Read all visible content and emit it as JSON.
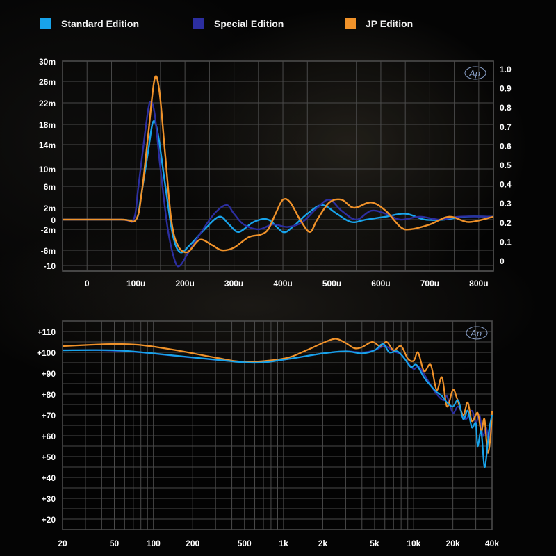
{
  "legend": [
    {
      "label": "Standard Edition",
      "color": "#18a3ea"
    },
    {
      "label": "Special Edition",
      "color": "#2c2ea0"
    },
    {
      "label": "JP Edition",
      "color": "#f0922a"
    }
  ],
  "chart_data": [
    {
      "type": "line",
      "xlim": [
        -50,
        830
      ],
      "x_ticks": [
        0,
        100,
        200,
        300,
        400,
        500,
        600,
        700,
        800
      ],
      "x_tick_labels": [
        "0",
        "100u",
        "200u",
        "300u",
        "400u",
        "500u",
        "600u",
        "700u",
        "800u"
      ],
      "y_left_ticks": [
        30,
        26,
        22,
        18,
        14,
        10,
        6,
        2,
        0,
        -2,
        -6,
        -10
      ],
      "y_left_tick_labels": [
        "30m",
        "26m",
        "22m",
        "18m",
        "14m",
        "10m",
        "6m",
        "2m",
        "0",
        "-2m",
        "-6m",
        "-10"
      ],
      "y_right_ticks": [
        1.0,
        0.9,
        0.8,
        0.7,
        0.6,
        0.5,
        0.4,
        0.3,
        0.2,
        0.1,
        0
      ],
      "y_right_tick_labels": [
        "1.0",
        "0.9",
        "0.8",
        "0.7",
        "0.6",
        "0.5",
        "0.4",
        "0.3",
        "0.2",
        "0.1",
        "0"
      ],
      "logo": "Ap",
      "grid": true,
      "series": [
        {
          "color": "#18a3ea",
          "points": [
            [
              -50,
              0
            ],
            [
              70,
              0
            ],
            [
              100,
              0
            ],
            [
              110,
              4
            ],
            [
              125,
              13
            ],
            [
              135,
              18.5
            ],
            [
              145,
              16
            ],
            [
              160,
              6
            ],
            [
              175,
              -3
            ],
            [
              190,
              -6.5
            ],
            [
              210,
              -5
            ],
            [
              240,
              -2
            ],
            [
              270,
              0.5
            ],
            [
              290,
              -1
            ],
            [
              310,
              -2.5
            ],
            [
              340,
              -0.5
            ],
            [
              370,
              0
            ],
            [
              400,
              -2.5
            ],
            [
              420,
              -1.5
            ],
            [
              450,
              1
            ],
            [
              480,
              2.5
            ],
            [
              510,
              1
            ],
            [
              540,
              -0.5
            ],
            [
              570,
              0
            ],
            [
              610,
              0.5
            ],
            [
              650,
              1
            ],
            [
              690,
              0
            ],
            [
              730,
              0
            ],
            [
              770,
              0.5
            ],
            [
              830,
              0.5
            ]
          ]
        },
        {
          "color": "#2c2ea0",
          "points": [
            [
              -50,
              0
            ],
            [
              70,
              0
            ],
            [
              95,
              0
            ],
            [
              105,
              6
            ],
            [
              118,
              16
            ],
            [
              128,
              22
            ],
            [
              138,
              20
            ],
            [
              150,
              10
            ],
            [
              165,
              -2
            ],
            [
              180,
              -9
            ],
            [
              190,
              -10
            ],
            [
              205,
              -7
            ],
            [
              230,
              -3
            ],
            [
              260,
              1
            ],
            [
              285,
              2.5
            ],
            [
              300,
              1
            ],
            [
              320,
              -1
            ],
            [
              350,
              -2
            ],
            [
              380,
              -1
            ],
            [
              410,
              -1.5
            ],
            [
              440,
              -0.5
            ],
            [
              470,
              2
            ],
            [
              495,
              3.5
            ],
            [
              520,
              1.5
            ],
            [
              550,
              0
            ],
            [
              580,
              1.5
            ],
            [
              610,
              1
            ],
            [
              640,
              0
            ],
            [
              680,
              0.5
            ],
            [
              720,
              0
            ],
            [
              760,
              0.5
            ],
            [
              830,
              0.5
            ]
          ]
        },
        {
          "color": "#f0922a",
          "points": [
            [
              -50,
              0
            ],
            [
              70,
              0
            ],
            [
              100,
              0
            ],
            [
              112,
              5
            ],
            [
              125,
              16
            ],
            [
              138,
              26.5
            ],
            [
              148,
              24
            ],
            [
              160,
              12
            ],
            [
              172,
              0
            ],
            [
              185,
              -5
            ],
            [
              205,
              -6.5
            ],
            [
              230,
              -4
            ],
            [
              255,
              -5
            ],
            [
              275,
              -6
            ],
            [
              300,
              -5.5
            ],
            [
              330,
              -3.5
            ],
            [
              355,
              -3
            ],
            [
              370,
              -2
            ],
            [
              385,
              1
            ],
            [
              400,
              3.5
            ],
            [
              415,
              3
            ],
            [
              435,
              0
            ],
            [
              455,
              -2.5
            ],
            [
              470,
              0
            ],
            [
              495,
              3
            ],
            [
              520,
              3.5
            ],
            [
              545,
              2
            ],
            [
              580,
              3
            ],
            [
              610,
              1.5
            ],
            [
              640,
              -1.5
            ],
            [
              660,
              -2
            ],
            [
              700,
              -1
            ],
            [
              740,
              0.5
            ],
            [
              780,
              -0.5
            ],
            [
              830,
              0.5
            ]
          ]
        }
      ]
    },
    {
      "type": "line",
      "x_scale": "log",
      "xlim": [
        20,
        40000
      ],
      "x_ticks": [
        20,
        50,
        100,
        200,
        500,
        1000,
        2000,
        5000,
        10000,
        20000,
        40000
      ],
      "x_tick_labels": [
        "20",
        "50",
        "100",
        "200",
        "500",
        "1k",
        "2k",
        "5k",
        "10k",
        "20k",
        "40k"
      ],
      "ylim": [
        15,
        115
      ],
      "y_ticks": [
        110,
        100,
        90,
        80,
        70,
        60,
        50,
        40,
        30,
        20
      ],
      "y_tick_labels": [
        "+110",
        "+100",
        "+90",
        "+80",
        "+70",
        "+60",
        "+50",
        "+40",
        "+30",
        "+20"
      ],
      "logo": "Ap",
      "grid": true,
      "series": [
        {
          "color": "#2c2ea0",
          "points": [
            [
              20,
              101
            ],
            [
              40,
              101
            ],
            [
              80,
              100
            ],
            [
              200,
              97.5
            ],
            [
              500,
              95.5
            ],
            [
              1000,
              96.5
            ],
            [
              2000,
              99.5
            ],
            [
              3000,
              100.5
            ],
            [
              4000,
              100
            ],
            [
              5000,
              101
            ],
            [
              6000,
              103
            ],
            [
              7000,
              100.5
            ],
            [
              8000,
              99
            ],
            [
              9000,
              95
            ],
            [
              10000,
              92
            ],
            [
              11000,
              93
            ],
            [
              13000,
              86
            ],
            [
              15000,
              80
            ],
            [
              17000,
              77
            ],
            [
              18000,
              79
            ],
            [
              20000,
              71
            ],
            [
              22000,
              74
            ],
            [
              25000,
              68
            ],
            [
              28000,
              72
            ],
            [
              30000,
              66
            ],
            [
              32000,
              70
            ],
            [
              34000,
              60
            ],
            [
              36000,
              64
            ],
            [
              38000,
              58
            ],
            [
              40000,
              72
            ]
          ]
        },
        {
          "color": "#f0922a",
          "points": [
            [
              20,
              103
            ],
            [
              30,
              103.5
            ],
            [
              50,
              104
            ],
            [
              80,
              103.5
            ],
            [
              150,
              101
            ],
            [
              300,
              97.5
            ],
            [
              500,
              95.5
            ],
            [
              1000,
              97
            ],
            [
              1500,
              101
            ],
            [
              2000,
              104.5
            ],
            [
              2500,
              106.5
            ],
            [
              3000,
              104.5
            ],
            [
              3500,
              102
            ],
            [
              4000,
              102.5
            ],
            [
              4800,
              105
            ],
            [
              5500,
              103
            ],
            [
              6200,
              105
            ],
            [
              7000,
              101
            ],
            [
              8000,
              103
            ],
            [
              9000,
              97
            ],
            [
              10000,
              96
            ],
            [
              10800,
              100
            ],
            [
              12000,
              91
            ],
            [
              13500,
              94
            ],
            [
              15000,
              82
            ],
            [
              16500,
              88
            ],
            [
              18000,
              74
            ],
            [
              20000,
              82
            ],
            [
              21500,
              78
            ],
            [
              24000,
              70
            ],
            [
              26000,
              76
            ],
            [
              28000,
              67
            ],
            [
              31000,
              71
            ],
            [
              33000,
              62
            ],
            [
              35000,
              68
            ],
            [
              37000,
              52
            ],
            [
              39000,
              60
            ],
            [
              40000,
              72
            ]
          ]
        },
        {
          "color": "#18a3ea",
          "points": [
            [
              20,
              101
            ],
            [
              50,
              101
            ],
            [
              100,
              99.5
            ],
            [
              300,
              96.5
            ],
            [
              600,
              95
            ],
            [
              1000,
              96.5
            ],
            [
              2000,
              99.5
            ],
            [
              3000,
              100.5
            ],
            [
              4000,
              99.5
            ],
            [
              5000,
              101
            ],
            [
              5800,
              104
            ],
            [
              6500,
              100
            ],
            [
              7500,
              100.5
            ],
            [
              8500,
              97
            ],
            [
              9500,
              93
            ],
            [
              10500,
              94
            ],
            [
              12000,
              88
            ],
            [
              13500,
              84
            ],
            [
              15000,
              81
            ],
            [
              16500,
              79
            ],
            [
              18000,
              76
            ],
            [
              20000,
              74
            ],
            [
              22000,
              77
            ],
            [
              24000,
              68
            ],
            [
              26000,
              72
            ],
            [
              28000,
              64
            ],
            [
              30000,
              66
            ],
            [
              31000,
              55
            ],
            [
              33000,
              62
            ],
            [
              35000,
              45
            ],
            [
              37000,
              56
            ],
            [
              38000,
              63
            ],
            [
              40000,
              70
            ]
          ]
        }
      ]
    }
  ]
}
